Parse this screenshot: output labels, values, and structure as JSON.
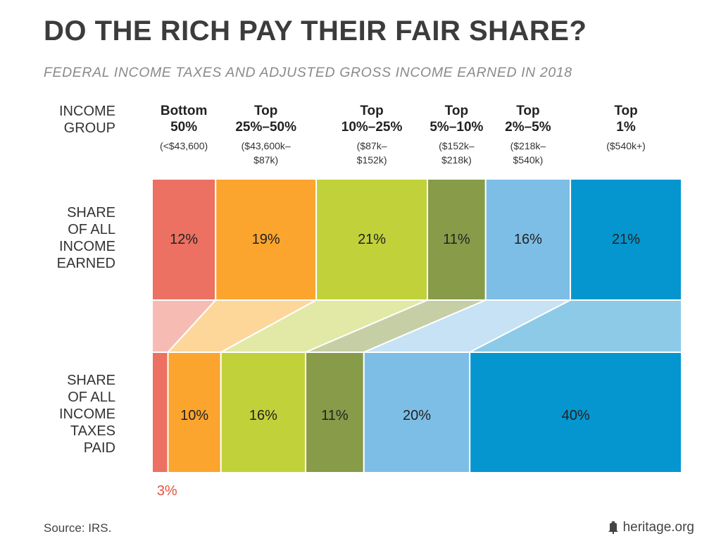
{
  "title": "DO THE RICH PAY THEIR FAIR SHARE?",
  "subtitle": "FEDERAL INCOME TAXES AND ADJUSTED GROSS INCOME EARNED IN 2018",
  "source": "Source: IRS.",
  "brand": "heritage.org",
  "labels": {
    "group_line1": "INCOME",
    "group_line2": "GROUP",
    "income_lines": [
      "SHARE",
      "OF ALL",
      "INCOME",
      "EARNED"
    ],
    "tax_lines": [
      "SHARE",
      "OF ALL",
      "INCOME",
      "TAXES",
      "PAID"
    ]
  },
  "chart_data": {
    "type": "bar",
    "orientation": "horizontal-stacked",
    "groups": [
      {
        "line1": "Bottom",
        "line2": "50%",
        "range1": "(<$43,600)",
        "range2": "",
        "color": "#ec7162",
        "fade": "#f6bcb3",
        "income": 12,
        "income_label": "12%",
        "taxes": 3,
        "taxes_label": "3%"
      },
      {
        "line1": "Top",
        "line2": "25%–50%",
        "range1": "($43,600k–",
        "range2": "$87k)",
        "color": "#fba52e",
        "fade": "#fdd69a",
        "income": 19,
        "income_label": "19%",
        "taxes": 10,
        "taxes_label": "10%"
      },
      {
        "line1": "Top",
        "line2": "10%–25%",
        "range1": "($87k–",
        "range2": "$152k)",
        "color": "#c1d13a",
        "fade": "#e2e9a7",
        "income": 21,
        "income_label": "21%",
        "taxes": 16,
        "taxes_label": "16%"
      },
      {
        "line1": "Top",
        "line2": "5%–10%",
        "range1": "($152k–",
        "range2": "$218k)",
        "color": "#879b49",
        "fade": "#c6cea6",
        "income": 11,
        "income_label": "11%",
        "taxes": 11,
        "taxes_label": "11%"
      },
      {
        "line1": "Top",
        "line2": "2%–5%",
        "range1": "($218k–",
        "range2": "$540k)",
        "color": "#7dbee6",
        "fade": "#c6e2f4",
        "income": 16,
        "income_label": "16%",
        "taxes": 20,
        "taxes_label": "20%"
      },
      {
        "line1": "Top",
        "line2": "1%",
        "range1": "($540k+)",
        "range2": "",
        "color": "#0596cf",
        "fade": "#8ccae8",
        "income": 21,
        "income_label": "21%",
        "taxes": 40,
        "taxes_label": "40%"
      }
    ],
    "small_label_color": "#e0533f"
  }
}
